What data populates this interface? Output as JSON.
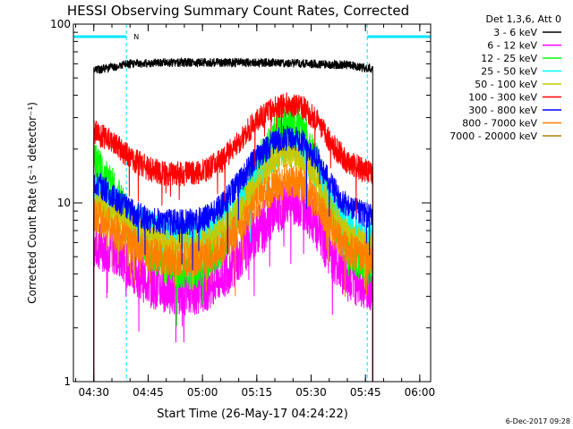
{
  "chart_data": {
    "type": "line",
    "title": "HESSI Observing Summary Count Rates, Corrected",
    "xlabel": "Start Time (26-May-17 04:24:22)",
    "ylabel": "Corrected Count Rate (s⁻¹ detector⁻¹)",
    "y_scale": "log",
    "ylim": [
      1,
      100
    ],
    "xlim": [
      "04:24:22",
      "06:03:00"
    ],
    "x_ticks": [
      "04:30",
      "04:45",
      "05:00",
      "05:15",
      "05:30",
      "05:45",
      "06:00"
    ],
    "y_ticks": [
      "1",
      "10",
      "100"
    ],
    "legend_header": "Det 1,3,6, Att 0",
    "legend_position": "right",
    "footer_date": "6-Dec-2017 09:28",
    "night_marker": "N",
    "data_start": "04:30:00",
    "data_end": "05:47:00",
    "night_segments": [
      {
        "start": "04:24:22",
        "end": "04:39:00"
      },
      {
        "start": "05:45:30",
        "end": "06:03:00"
      }
    ],
    "series": [
      {
        "name": "3 - 6 keV",
        "color": "#000000",
        "points": [
          [
            "04:30:00",
            55
          ],
          [
            "04:40:00",
            60
          ],
          [
            "04:50:00",
            61
          ],
          [
            "05:00:00",
            61
          ],
          [
            "05:10:00",
            61
          ],
          [
            "05:20:00",
            61
          ],
          [
            "05:30:00",
            60
          ],
          [
            "05:40:00",
            59
          ],
          [
            "05:47:00",
            56
          ]
        ]
      },
      {
        "name": "6 - 12 keV",
        "color": "#ff00ff",
        "points": [
          [
            "04:30:00",
            5.8
          ],
          [
            "04:35:00",
            5.5
          ],
          [
            "04:40:00",
            4.5
          ],
          [
            "04:45:00",
            3.6
          ],
          [
            "04:50:00",
            3.3
          ],
          [
            "04:55:00",
            3.2
          ],
          [
            "05:00:00",
            3.3
          ],
          [
            "05:05:00",
            3.8
          ],
          [
            "05:10:00",
            5.0
          ],
          [
            "05:15:00",
            7.0
          ],
          [
            "05:20:00",
            9.0
          ],
          [
            "05:24:00",
            10.2
          ],
          [
            "05:28:00",
            9.5
          ],
          [
            "05:32:00",
            7.0
          ],
          [
            "05:36:00",
            5.0
          ],
          [
            "05:40:00",
            3.8
          ],
          [
            "05:45:00",
            3.5
          ],
          [
            "05:47:00",
            3.4
          ]
        ]
      },
      {
        "name": "12 - 25 keV",
        "color": "#00ff00",
        "points": [
          [
            "04:30:00",
            17
          ],
          [
            "04:35:00",
            12.5
          ],
          [
            "04:40:00",
            8.0
          ],
          [
            "04:45:00",
            5.5
          ],
          [
            "04:50:00",
            4.5
          ],
          [
            "04:55:00",
            4.2
          ],
          [
            "05:00:00",
            4.3
          ],
          [
            "05:05:00",
            5.5
          ],
          [
            "05:10:00",
            9.0
          ],
          [
            "05:15:00",
            16
          ],
          [
            "05:20:00",
            24
          ],
          [
            "05:24:00",
            28
          ],
          [
            "05:28:00",
            25
          ],
          [
            "05:32:00",
            16
          ],
          [
            "05:36:00",
            8.5
          ],
          [
            "05:40:00",
            5.5
          ],
          [
            "05:45:00",
            4.5
          ],
          [
            "05:47:00",
            4.3
          ]
        ]
      },
      {
        "name": "25 - 50 keV",
        "color": "#00ffff",
        "points": [
          [
            "04:30:00",
            12
          ],
          [
            "04:35:00",
            10.5
          ],
          [
            "04:40:00",
            8.5
          ],
          [
            "04:45:00",
            7.5
          ],
          [
            "04:50:00",
            6.8
          ],
          [
            "04:55:00",
            6.5
          ],
          [
            "05:00:00",
            6.6
          ],
          [
            "05:05:00",
            7.5
          ],
          [
            "05:10:00",
            9.5
          ],
          [
            "05:15:00",
            14
          ],
          [
            "05:20:00",
            19
          ],
          [
            "05:24:00",
            21
          ],
          [
            "05:28:00",
            19
          ],
          [
            "05:32:00",
            14
          ],
          [
            "05:36:00",
            9.5
          ],
          [
            "05:40:00",
            7.5
          ],
          [
            "05:45:00",
            6.5
          ],
          [
            "05:47:00",
            6.3
          ]
        ]
      },
      {
        "name": "50 - 100 keV",
        "color": "#c8c800",
        "points": [
          [
            "04:30:00",
            10
          ],
          [
            "04:35:00",
            9.0
          ],
          [
            "04:40:00",
            7.5
          ],
          [
            "04:45:00",
            6.5
          ],
          [
            "04:50:00",
            6.0
          ],
          [
            "04:55:00",
            5.8
          ],
          [
            "05:00:00",
            5.9
          ],
          [
            "05:05:00",
            6.8
          ],
          [
            "05:10:00",
            9.0
          ],
          [
            "05:15:00",
            13
          ],
          [
            "05:20:00",
            17.5
          ],
          [
            "05:24:00",
            19.5
          ],
          [
            "05:28:00",
            17.5
          ],
          [
            "05:32:00",
            13
          ],
          [
            "05:36:00",
            8.5
          ],
          [
            "05:40:00",
            6.5
          ],
          [
            "05:45:00",
            5.8
          ],
          [
            "05:47:00",
            5.6
          ]
        ]
      },
      {
        "name": "100 - 300 keV",
        "color": "#ff0000",
        "points": [
          [
            "04:30:00",
            25
          ],
          [
            "04:35:00",
            22
          ],
          [
            "04:40:00",
            18
          ],
          [
            "04:45:00",
            15.5
          ],
          [
            "04:50:00",
            14.5
          ],
          [
            "04:55:00",
            14.5
          ],
          [
            "05:00:00",
            15
          ],
          [
            "05:05:00",
            17
          ],
          [
            "05:10:00",
            22
          ],
          [
            "05:15:00",
            29
          ],
          [
            "05:20:00",
            34
          ],
          [
            "05:24:00",
            36
          ],
          [
            "05:28:00",
            34
          ],
          [
            "05:32:00",
            28
          ],
          [
            "05:36:00",
            21
          ],
          [
            "05:40:00",
            17
          ],
          [
            "05:45:00",
            15
          ],
          [
            "05:47:00",
            14.5
          ]
        ]
      },
      {
        "name": "300 - 800 keV",
        "color": "#0000ff",
        "points": [
          [
            "04:30:00",
            13.5
          ],
          [
            "04:35:00",
            11
          ],
          [
            "04:40:00",
            9.0
          ],
          [
            "04:45:00",
            8.0
          ],
          [
            "04:50:00",
            7.8
          ],
          [
            "04:55:00",
            7.8
          ],
          [
            "05:00:00",
            8.0
          ],
          [
            "05:05:00",
            9.5
          ],
          [
            "05:10:00",
            13
          ],
          [
            "05:15:00",
            18
          ],
          [
            "05:20:00",
            22
          ],
          [
            "05:24:00",
            23.5
          ],
          [
            "05:28:00",
            21.5
          ],
          [
            "05:32:00",
            17
          ],
          [
            "05:36:00",
            12
          ],
          [
            "05:40:00",
            9.5
          ],
          [
            "05:45:00",
            8.5
          ],
          [
            "05:47:00",
            8.3
          ]
        ]
      },
      {
        "name": "800 - 7000 keV",
        "color": "#ff8000",
        "points": [
          [
            "04:30:00",
            8.5
          ],
          [
            "04:35:00",
            7.5
          ],
          [
            "04:40:00",
            6.0
          ],
          [
            "04:45:00",
            5.2
          ],
          [
            "04:50:00",
            4.9
          ],
          [
            "04:55:00",
            4.8
          ],
          [
            "05:00:00",
            4.9
          ],
          [
            "05:05:00",
            5.5
          ],
          [
            "05:10:00",
            7.2
          ],
          [
            "05:15:00",
            10
          ],
          [
            "05:20:00",
            12.5
          ],
          [
            "05:24:00",
            13.5
          ],
          [
            "05:28:00",
            12.5
          ],
          [
            "05:32:00",
            9.5
          ],
          [
            "05:36:00",
            7.0
          ],
          [
            "05:40:00",
            5.5
          ],
          [
            "05:45:00",
            5.0
          ],
          [
            "05:47:00",
            4.8
          ]
        ]
      },
      {
        "name": "7000 - 20000 keV",
        "color": "#b08000",
        "points": []
      }
    ]
  }
}
